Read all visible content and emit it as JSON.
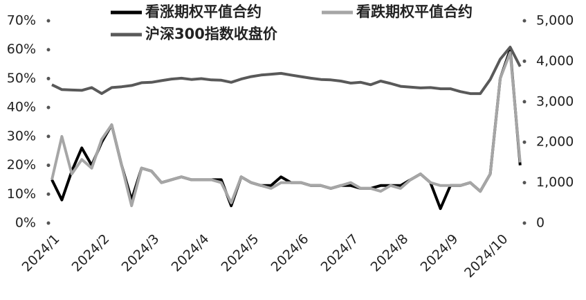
{
  "chart_data": {
    "type": "line",
    "categories": [
      "2024/1",
      null,
      null,
      null,
      null,
      "2024/2",
      null,
      null,
      null,
      null,
      "2024/3",
      null,
      null,
      null,
      null,
      "2024/4",
      null,
      null,
      null,
      null,
      "2024/5",
      null,
      null,
      null,
      null,
      "2024/6",
      null,
      null,
      null,
      null,
      "2024/7",
      null,
      null,
      null,
      null,
      "2024/8",
      null,
      null,
      null,
      null,
      "2024/9",
      null,
      null,
      null,
      null,
      "2024/10",
      null,
      null
    ],
    "series": [
      {
        "name": "看涨期权平值合约",
        "color": "#000000",
        "axis": "y",
        "values": [
          15,
          8,
          18,
          26,
          20,
          28,
          34,
          20,
          8,
          19,
          18,
          14,
          15,
          16,
          15,
          15,
          15,
          15,
          6,
          16,
          14,
          13,
          13,
          16,
          14,
          14,
          13,
          13,
          12,
          13,
          13,
          12,
          12,
          13,
          13,
          13,
          15,
          17,
          14,
          5,
          13,
          13,
          14,
          11,
          17,
          50,
          60,
          20
        ]
      },
      {
        "name": "看跌期权平值合约",
        "color": "#a6a6a6",
        "axis": "y",
        "values": [
          15,
          30,
          17,
          22,
          19,
          29,
          34,
          20,
          6,
          19,
          18,
          14,
          15,
          16,
          15,
          15,
          15,
          14,
          7,
          16,
          14,
          13,
          12,
          14,
          14,
          14,
          13,
          13,
          12,
          13,
          14,
          12,
          12,
          11,
          13,
          12,
          15,
          17,
          14,
          13,
          13,
          13,
          14,
          11,
          17,
          50,
          59,
          21
        ]
      },
      {
        "name": "沪深300指数收盘价",
        "color": "#595959",
        "axis": "y2",
        "values": [
          3420,
          3300,
          3290,
          3280,
          3350,
          3200,
          3350,
          3370,
          3400,
          3470,
          3480,
          3520,
          3560,
          3580,
          3550,
          3570,
          3540,
          3530,
          3480,
          3560,
          3620,
          3660,
          3680,
          3700,
          3660,
          3620,
          3580,
          3550,
          3540,
          3510,
          3460,
          3480,
          3420,
          3510,
          3450,
          3380,
          3360,
          3340,
          3350,
          3320,
          3320,
          3250,
          3200,
          3200,
          3550,
          4050,
          4350,
          3870
        ]
      }
    ],
    "ylim": [
      0,
      70
    ],
    "yticks": [
      {
        "value": 0,
        "label": "0%"
      },
      {
        "value": 10,
        "label": "10%"
      },
      {
        "value": 20,
        "label": "20%"
      },
      {
        "value": 30,
        "label": "30%"
      },
      {
        "value": 40,
        "label": "40%"
      },
      {
        "value": 50,
        "label": "50%"
      },
      {
        "value": 60,
        "label": "60%"
      },
      {
        "value": 70,
        "label": "70%"
      }
    ],
    "y2lim": [
      0,
      5000
    ],
    "y2ticks": [
      0,
      {
        "value": 1000,
        "label": "1,000"
      },
      {
        "value": 2000,
        "label": "2,000"
      },
      {
        "value": 3000,
        "label": "3,000"
      },
      {
        "value": 4000,
        "label": "4,000"
      },
      {
        "value": 5000,
        "label": "5,000"
      }
    ],
    "grid": false
  }
}
